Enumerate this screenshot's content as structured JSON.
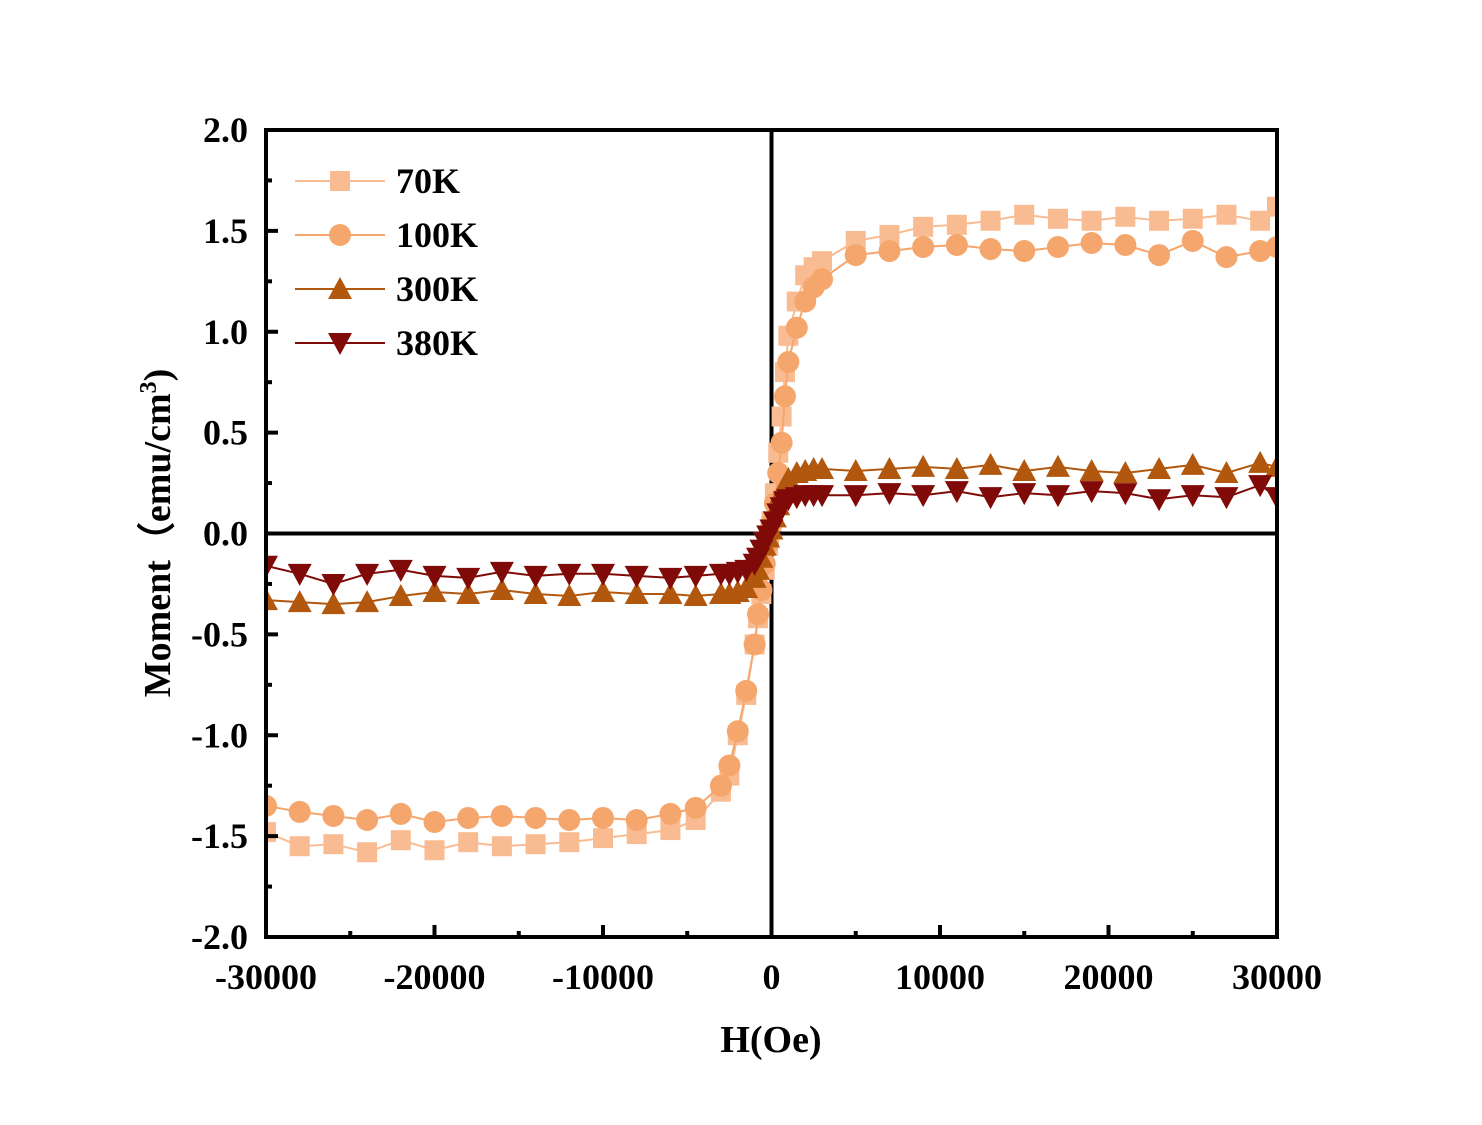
{
  "chart_data": {
    "type": "scatter",
    "title": "",
    "xlabel": "H(Oe)",
    "ylabel": "Moment（emu/cm",
    "ylabel_sup": "3",
    "ylabel_close": ")",
    "xlim": [
      -30000,
      30000
    ],
    "ylim": [
      -2.0,
      2.0
    ],
    "xticks": [
      -30000,
      -20000,
      -10000,
      0,
      10000,
      20000,
      30000
    ],
    "xtick_labels": [
      "-30000",
      "-20000",
      "-10000",
      "0",
      "10000",
      "20000",
      "30000"
    ],
    "yticks": [
      2.0,
      1.5,
      1.0,
      0.5,
      0.0,
      -0.5,
      -1.0,
      -1.5,
      -2.0
    ],
    "ytick_labels": [
      "2.0",
      "1.5",
      "1.0",
      "0.5",
      "0.0",
      "-0.5",
      "-1.0",
      "-1.5",
      "-2.0"
    ],
    "legend_position": "top-left",
    "grid": false,
    "series": [
      {
        "name": "70K",
        "marker": "square",
        "color": "#F9BC92",
        "x": [
          -30000,
          -28000,
          -26000,
          -24000,
          -22000,
          -20000,
          -18000,
          -16000,
          -14000,
          -12000,
          -10000,
          -8000,
          -6000,
          -4500,
          -3000,
          -2500,
          -2000,
          -1500,
          -1000,
          -800,
          -600,
          -400,
          -200,
          0,
          200,
          400,
          600,
          800,
          1000,
          1500,
          2000,
          2500,
          3000,
          5000,
          7000,
          9000,
          11000,
          13000,
          15000,
          17000,
          19000,
          21000,
          23000,
          25000,
          27000,
          29000,
          30000
        ],
        "y": [
          -1.48,
          -1.55,
          -1.54,
          -1.58,
          -1.52,
          -1.57,
          -1.53,
          -1.55,
          -1.54,
          -1.53,
          -1.51,
          -1.49,
          -1.47,
          -1.42,
          -1.28,
          -1.2,
          -1.0,
          -0.8,
          -0.55,
          -0.42,
          -0.3,
          -0.18,
          -0.06,
          0.06,
          0.2,
          0.4,
          0.58,
          0.8,
          0.98,
          1.15,
          1.28,
          1.32,
          1.35,
          1.45,
          1.48,
          1.52,
          1.53,
          1.55,
          1.58,
          1.56,
          1.55,
          1.57,
          1.55,
          1.56,
          1.58,
          1.55,
          1.62
        ]
      },
      {
        "name": "100K",
        "marker": "circle",
        "color": "#F5A66D",
        "x": [
          -30000,
          -28000,
          -26000,
          -24000,
          -22000,
          -20000,
          -18000,
          -16000,
          -14000,
          -12000,
          -10000,
          -8000,
          -6000,
          -4500,
          -3000,
          -2500,
          -2000,
          -1500,
          -1000,
          -800,
          -600,
          -400,
          -200,
          0,
          200,
          400,
          600,
          800,
          1000,
          1500,
          2000,
          2500,
          3000,
          5000,
          7000,
          9000,
          11000,
          13000,
          15000,
          17000,
          19000,
          21000,
          23000,
          25000,
          27000,
          29000,
          30000
        ],
        "y": [
          -1.35,
          -1.38,
          -1.4,
          -1.42,
          -1.39,
          -1.43,
          -1.41,
          -1.4,
          -1.41,
          -1.42,
          -1.41,
          -1.42,
          -1.39,
          -1.36,
          -1.25,
          -1.15,
          -0.98,
          -0.78,
          -0.55,
          -0.4,
          -0.28,
          -0.15,
          -0.05,
          0.05,
          0.15,
          0.3,
          0.45,
          0.68,
          0.85,
          1.02,
          1.15,
          1.22,
          1.26,
          1.38,
          1.4,
          1.42,
          1.43,
          1.41,
          1.4,
          1.42,
          1.44,
          1.43,
          1.38,
          1.45,
          1.37,
          1.4,
          1.42
        ]
      },
      {
        "name": "300K",
        "marker": "triangle-up",
        "color": "#B2580E",
        "x": [
          -30000,
          -28000,
          -26000,
          -24000,
          -22000,
          -20000,
          -18000,
          -16000,
          -14000,
          -12000,
          -10000,
          -8000,
          -6000,
          -4500,
          -3000,
          -2500,
          -2000,
          -1500,
          -1000,
          -800,
          -600,
          -400,
          -200,
          0,
          200,
          400,
          600,
          800,
          1000,
          1500,
          2000,
          2500,
          3000,
          5000,
          7000,
          9000,
          11000,
          13000,
          15000,
          17000,
          19000,
          21000,
          23000,
          25000,
          27000,
          29000,
          30000
        ],
        "y": [
          -0.33,
          -0.34,
          -0.35,
          -0.34,
          -0.31,
          -0.29,
          -0.3,
          -0.28,
          -0.3,
          -0.31,
          -0.29,
          -0.3,
          -0.3,
          -0.31,
          -0.3,
          -0.3,
          -0.29,
          -0.27,
          -0.22,
          -0.18,
          -0.12,
          -0.06,
          -0.02,
          0.02,
          0.08,
          0.14,
          0.2,
          0.24,
          0.27,
          0.3,
          0.31,
          0.32,
          0.32,
          0.31,
          0.32,
          0.33,
          0.32,
          0.34,
          0.31,
          0.33,
          0.31,
          0.3,
          0.32,
          0.34,
          0.3,
          0.35,
          0.33
        ]
      },
      {
        "name": "380K",
        "marker": "triangle-down",
        "color": "#7F0A07",
        "x": [
          -30000,
          -28000,
          -26000,
          -24000,
          -22000,
          -20000,
          -18000,
          -16000,
          -14000,
          -12000,
          -10000,
          -8000,
          -6000,
          -4500,
          -3000,
          -2500,
          -2000,
          -1500,
          -1000,
          -800,
          -600,
          -400,
          -200,
          0,
          200,
          400,
          600,
          800,
          1000,
          1500,
          2000,
          2500,
          3000,
          5000,
          7000,
          9000,
          11000,
          13000,
          15000,
          17000,
          19000,
          21000,
          23000,
          25000,
          27000,
          29000,
          30000
        ],
        "y": [
          -0.16,
          -0.2,
          -0.25,
          -0.2,
          -0.18,
          -0.21,
          -0.22,
          -0.19,
          -0.21,
          -0.2,
          -0.2,
          -0.21,
          -0.22,
          -0.21,
          -0.2,
          -0.2,
          -0.19,
          -0.18,
          -0.15,
          -0.12,
          -0.08,
          -0.04,
          -0.01,
          0.02,
          0.06,
          0.1,
          0.13,
          0.16,
          0.17,
          0.18,
          0.19,
          0.19,
          0.19,
          0.19,
          0.2,
          0.19,
          0.21,
          0.18,
          0.2,
          0.19,
          0.21,
          0.2,
          0.17,
          0.19,
          0.18,
          0.24,
          0.18
        ]
      }
    ]
  }
}
